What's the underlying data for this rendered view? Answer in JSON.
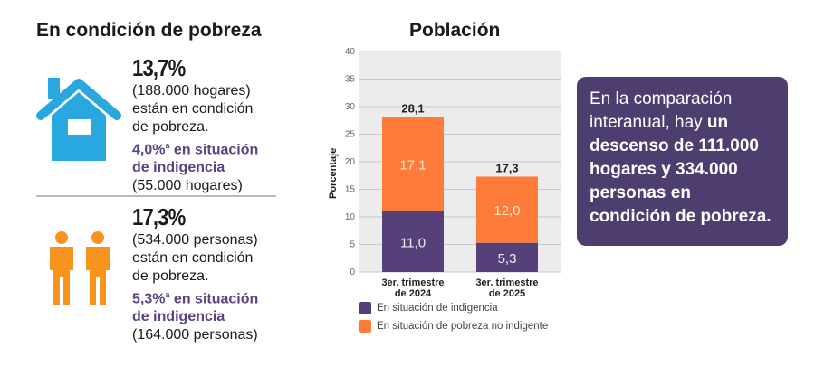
{
  "left": {
    "title": "En condición de pobreza",
    "households": {
      "pct": "13,7%",
      "count": "(188.000 hogares)",
      "line1": "están en condición",
      "line2": "de pobreza.",
      "indigence1": "4,0%",
      "sup": "a",
      "indigence1b": " en situación",
      "indigence2": "de indigencia",
      "indigence_count": "(55.000 hogares)"
    },
    "persons": {
      "pct": "17,3%",
      "count": "(534.000 personas)",
      "line1": "están en condición",
      "line2": "de pobreza.",
      "indigence1": "5,3%",
      "sup": "a",
      "indigence1b": " en situación",
      "indigence2": "de indigencia",
      "indigence_count": "(164.000 personas)"
    },
    "icons": {
      "households": "house-icon",
      "persons": "people-icon"
    }
  },
  "callout": {
    "plain": "En la comparación interanual, hay ",
    "bold": "un descenso de 111.000 hogares y 334.000 personas en condición de pobreza."
  },
  "colors": {
    "indigence": "#56407a",
    "poverty": "#ff7b3a",
    "house": "#29a8e0",
    "people": "#f7931e",
    "callout": "#4e3e70"
  },
  "chart_data": {
    "type": "bar",
    "stacked": true,
    "title": "Población",
    "ylabel": "Porcentaje",
    "ylim": [
      0,
      40
    ],
    "yticks": [
      "0",
      "5",
      "10",
      "15",
      "20",
      "25",
      "30",
      "35",
      "40"
    ],
    "categories": [
      "3er. trimestre de 2024",
      "3er. trimestre de 2025"
    ],
    "category_lines": [
      [
        "3er. trimestre",
        "de 2024"
      ],
      [
        "3er. trimestre",
        "de 2025"
      ]
    ],
    "totals": [
      "28,1",
      "17,3"
    ],
    "series": [
      {
        "name": "En situación de indigencia",
        "values": [
          11.0,
          5.3
        ],
        "labels": [
          "11,0",
          "5,3"
        ]
      },
      {
        "name": "En situación de pobreza no indigente",
        "values": [
          17.1,
          12.0
        ],
        "labels": [
          "17,1",
          "12,0"
        ]
      }
    ],
    "grid": true,
    "legend": "bottom"
  }
}
